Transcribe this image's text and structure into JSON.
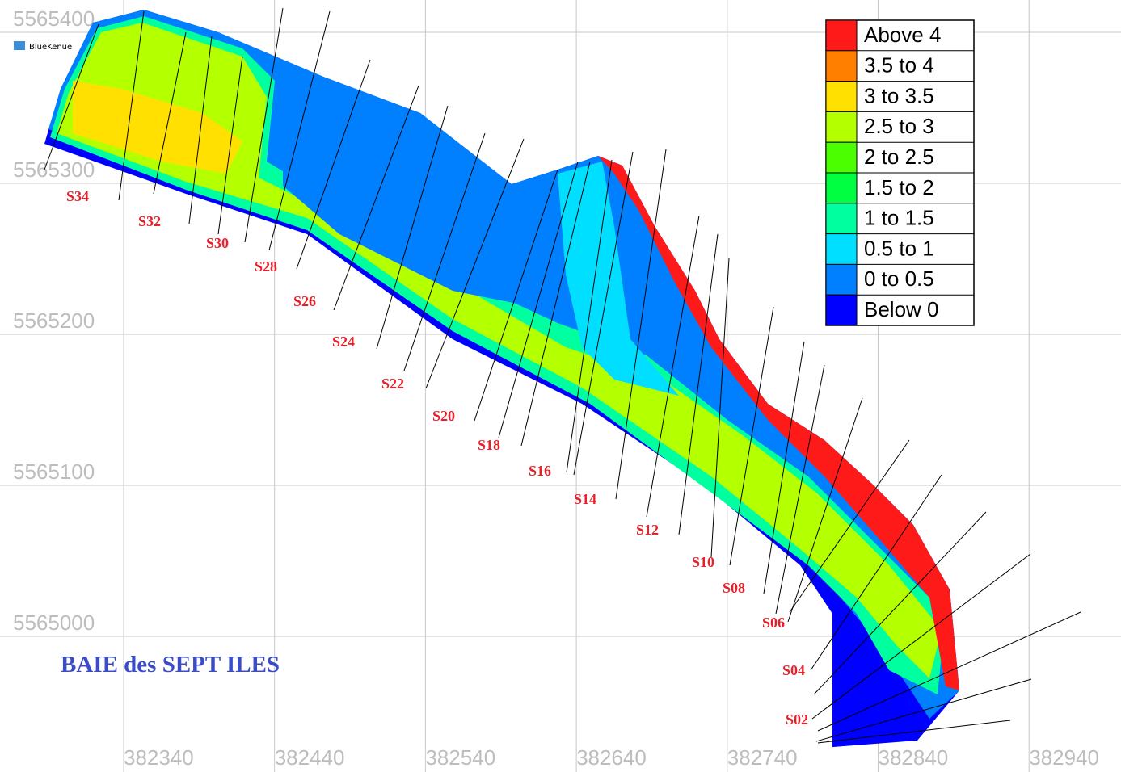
{
  "app": {
    "name": "BlueKenue"
  },
  "map": {
    "title": "BAIE des SEPT ILES",
    "xticks": [
      382340,
      382440,
      382540,
      382640,
      382740,
      382840,
      382940
    ],
    "yticks": [
      5565400,
      5565300,
      5565200,
      5565100,
      5565000
    ],
    "legend": [
      {
        "label": "Above 4",
        "color": "#ff1a1a"
      },
      {
        "label": "3.5 to 4",
        "color": "#ff7f00"
      },
      {
        "label": "3 to 3.5",
        "color": "#ffe000"
      },
      {
        "label": "2.5 to 3",
        "color": "#b4ff00"
      },
      {
        "label": "2 to 2.5",
        "color": "#4cff00"
      },
      {
        "label": "1.5 to 2",
        "color": "#00ff40"
      },
      {
        "label": "1 to 1.5",
        "color": "#00ff9f"
      },
      {
        "label": "0.5 to 1",
        "color": "#00dfff"
      },
      {
        "label": "0 to 0.5",
        "color": "#0080ff"
      },
      {
        "label": "Below 0",
        "color": "#0000ff"
      }
    ],
    "sections": [
      "S34",
      "S32",
      "S30",
      "S28",
      "S26",
      "S24",
      "S22",
      "S20",
      "S18",
      "S16",
      "S14",
      "S12",
      "S10",
      "S08",
      "S06",
      "S04",
      "S02"
    ]
  }
}
